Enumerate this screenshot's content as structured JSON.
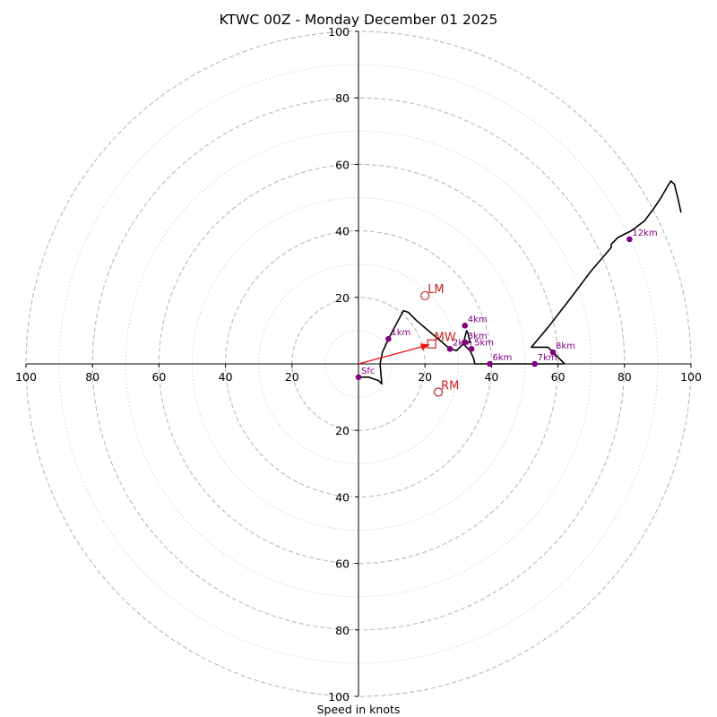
{
  "chart_data": {
    "type": "hodograph",
    "title": "KTWC 00Z - Monday December 01 2025",
    "xlabel": "Speed in knots",
    "units": "knots",
    "max_speed": 100,
    "ring_speeds_major": [
      20,
      40,
      60,
      80,
      100
    ],
    "ring_speeds_minor": [
      10,
      30,
      50,
      70,
      90
    ],
    "ticks": {
      "x_left": [
        "100",
        "80",
        "60",
        "40",
        "20"
      ],
      "x_right": [
        "20",
        "40",
        "60",
        "80",
        "100"
      ],
      "y_up": [
        "20",
        "40",
        "60",
        "80",
        "100"
      ],
      "y_down": [
        "20",
        "40",
        "60",
        "80",
        "100"
      ]
    },
    "tick_values": [
      20,
      40,
      60,
      80,
      100
    ],
    "trace": [
      [
        0,
        -4
      ],
      [
        3,
        -4
      ],
      [
        6,
        -5
      ],
      [
        7,
        -6
      ],
      [
        6.5,
        0
      ],
      [
        7.2,
        3.5
      ],
      [
        9,
        7.5
      ],
      [
        13.5,
        16
      ],
      [
        15,
        15.5
      ],
      [
        17.5,
        13
      ],
      [
        21,
        10
      ],
      [
        24,
        7.5
      ],
      [
        27.5,
        4.5
      ],
      [
        29.5,
        4
      ],
      [
        31.5,
        6
      ],
      [
        32,
        8
      ],
      [
        32.5,
        10
      ],
      [
        33,
        9
      ],
      [
        33.5,
        6.5
      ],
      [
        31.5,
        6
      ],
      [
        33.5,
        4
      ],
      [
        34.5,
        2
      ],
      [
        35,
        0
      ],
      [
        39.5,
        0
      ],
      [
        44,
        0
      ],
      [
        49,
        0
      ],
      [
        52,
        0
      ],
      [
        53,
        0
      ],
      [
        57,
        0
      ],
      [
        60,
        0
      ],
      [
        62,
        0
      ],
      [
        60,
        2
      ],
      [
        58.5,
        3.5
      ],
      [
        57,
        5
      ],
      [
        52,
        5
      ],
      [
        57,
        11
      ],
      [
        64,
        20
      ],
      [
        70,
        28
      ],
      [
        76,
        35
      ],
      [
        76,
        36
      ],
      [
        78,
        38
      ],
      [
        82,
        40
      ],
      [
        86,
        43
      ],
      [
        89,
        47
      ],
      [
        91,
        50
      ],
      [
        93,
        53.5
      ],
      [
        94,
        55
      ],
      [
        95,
        54
      ],
      [
        96,
        50
      ],
      [
        97,
        45.5
      ]
    ],
    "height_points": [
      {
        "label": "Sfc",
        "u": 0,
        "v": -4
      },
      {
        "label": "1km",
        "u": 9,
        "v": 7.5
      },
      {
        "label": "2km",
        "u": 27.5,
        "v": 4.5
      },
      {
        "label": "3km",
        "u": 32,
        "v": 6.5
      },
      {
        "label": "4km",
        "u": 32,
        "v": 11.5
      },
      {
        "label": "5km",
        "u": 34,
        "v": 4.5
      },
      {
        "label": "6km",
        "u": 39.5,
        "v": 0
      },
      {
        "label": "7km",
        "u": 53,
        "v": 0
      },
      {
        "label": "8km",
        "u": 58.5,
        "v": 3.5
      },
      {
        "label": "12km",
        "u": 81.5,
        "v": 37.5
      }
    ],
    "storm_motion": {
      "mean_wind": {
        "label": "MW",
        "u": 22,
        "v": 6
      },
      "left_mover": {
        "label": "LM",
        "u": 20,
        "v": 20.5
      },
      "right_mover": {
        "label": "RM",
        "u": 24,
        "v": -8.5
      }
    },
    "colors": {
      "trace": "#000000",
      "height_points": "#800080",
      "storm_motion": "#cc2222",
      "shear_arrow": "#ee1111",
      "major_ring": "#b9b9b9",
      "minor_ring": "#d2d2d2"
    }
  }
}
